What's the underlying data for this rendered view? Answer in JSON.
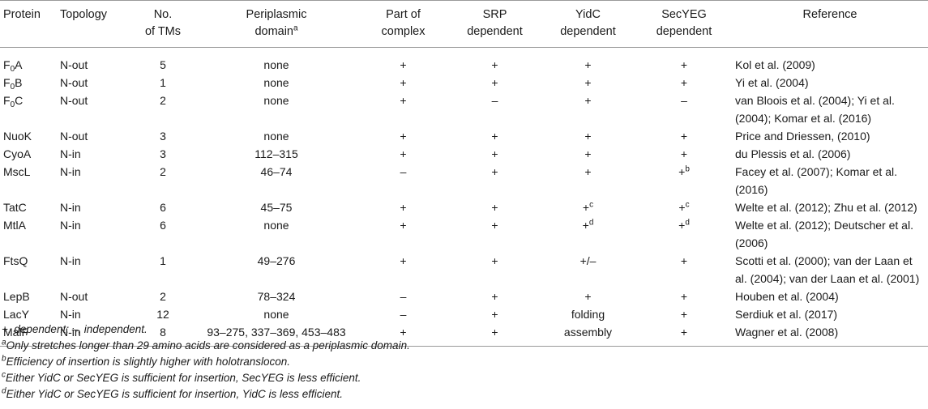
{
  "headers": {
    "protein": "Protein",
    "topology": "Topology",
    "tms_1": "No.",
    "tms_2": "of TMs",
    "peri_1": "Periplasmic",
    "peri_2": "domain",
    "peri_sup": "a",
    "complex_1": "Part of",
    "complex_2": "complex",
    "srp_1": "SRP",
    "srp_2": "dependent",
    "yidc_1": "YidC",
    "yidc_2": "dependent",
    "secyeg_1": "SecYEG",
    "secyeg_2": "dependent",
    "reference": "Reference"
  },
  "rows": [
    {
      "p_main": "F",
      "p_sub": "0",
      "p_tail": "A",
      "topology": "N-out",
      "tms": "5",
      "peri": "none",
      "complex": "+",
      "srp": "+",
      "yidc": "+",
      "yidc_sup": "",
      "secyeg": "+",
      "secyeg_sup": "",
      "reference": "Kol et al. (2009)"
    },
    {
      "p_main": "F",
      "p_sub": "0",
      "p_tail": "B",
      "topology": "N-out",
      "tms": "1",
      "peri": "none",
      "complex": "+",
      "srp": "+",
      "yidc": "+",
      "yidc_sup": "",
      "secyeg": "+",
      "secyeg_sup": "",
      "reference": "Yi et al. (2004)"
    },
    {
      "p_main": "F",
      "p_sub": "0",
      "p_tail": "C",
      "topology": "N-out",
      "tms": "2",
      "peri": "none",
      "complex": "+",
      "srp": "–",
      "yidc": "+",
      "yidc_sup": "",
      "secyeg": "–",
      "secyeg_sup": "",
      "reference": "van Bloois et al. (2004); Yi et al. (2004); Komar et al. (2016)"
    },
    {
      "p_main": "NuoK",
      "p_sub": "",
      "p_tail": "",
      "topology": "N-out",
      "tms": "3",
      "peri": "none",
      "complex": "+",
      "srp": "+",
      "yidc": "+",
      "yidc_sup": "",
      "secyeg": "+",
      "secyeg_sup": "",
      "reference": "Price and Driessen, (2010)"
    },
    {
      "p_main": "CyoA",
      "p_sub": "",
      "p_tail": "",
      "topology": "N-in",
      "tms": "3",
      "peri": "112–315",
      "complex": "+",
      "srp": "+",
      "yidc": "+",
      "yidc_sup": "",
      "secyeg": "+",
      "secyeg_sup": "",
      "reference": "du Plessis et al. (2006)"
    },
    {
      "p_main": "MscL",
      "p_sub": "",
      "p_tail": "",
      "topology": "N-in",
      "tms": "2",
      "peri": "46–74",
      "complex": "–",
      "srp": "+",
      "yidc": "+",
      "yidc_sup": "",
      "secyeg": "+",
      "secyeg_sup": "b",
      "reference": "Facey et al. (2007); Komar et al. (2016)"
    },
    {
      "p_main": "TatC",
      "p_sub": "",
      "p_tail": "",
      "topology": "N-in",
      "tms": "6",
      "peri": "45–75",
      "complex": "+",
      "srp": "+",
      "yidc": "+",
      "yidc_sup": "c",
      "secyeg": "+",
      "secyeg_sup": "c",
      "reference": "Welte et al. (2012); Zhu et al. (2012)"
    },
    {
      "p_main": "MtlA",
      "p_sub": "",
      "p_tail": "",
      "topology": "N-in",
      "tms": "6",
      "peri": "none",
      "complex": "+",
      "srp": "+",
      "yidc": "+",
      "yidc_sup": "d",
      "secyeg": "+",
      "secyeg_sup": "d",
      "reference": "Welte et al. (2012); Deutscher et al. (2006)"
    },
    {
      "p_main": "FtsQ",
      "p_sub": "",
      "p_tail": "",
      "topology": "N-in",
      "tms": "1",
      "peri": "49–276",
      "complex": "+",
      "srp": "+",
      "yidc": "+/–",
      "yidc_sup": "",
      "secyeg": "+",
      "secyeg_sup": "",
      "reference": "Scotti et al. (2000); van der Laan et al. (2004); van der Laan et al. (2001)"
    },
    {
      "p_main": "LepB",
      "p_sub": "",
      "p_tail": "",
      "topology": "N-out",
      "tms": "2",
      "peri": "78–324",
      "complex": "–",
      "srp": "+",
      "yidc": "+",
      "yidc_sup": "",
      "secyeg": "+",
      "secyeg_sup": "",
      "reference": "Houben et al. (2004)"
    },
    {
      "p_main": "LacY",
      "p_sub": "",
      "p_tail": "",
      "topology": "N-in",
      "tms": "12",
      "peri": "none",
      "complex": "–",
      "srp": "+",
      "yidc": "folding",
      "yidc_sup": "",
      "secyeg": "+",
      "secyeg_sup": "",
      "reference": "Serdiuk et al. (2017)"
    },
    {
      "p_main": "MalF",
      "p_sub": "",
      "p_tail": "",
      "topology": "N-in",
      "tms": "8",
      "peri": "93–275, 337–369, 453–483",
      "complex": "+",
      "srp": "+",
      "yidc": "assembly",
      "yidc_sup": "",
      "secyeg": "+",
      "secyeg_sup": "",
      "reference": "Wagner et al. (2008)"
    }
  ],
  "notes": {
    "legend": "+, dependent; –, independent.",
    "a_sup": "a",
    "a_text": "Only stretches longer than 29 amino acids are considered as a periplasmic domain.",
    "b_sup": "b",
    "b_text": "Efficiency of insertion is slightly higher with holotranslocon.",
    "c_sup": "c",
    "c_text": "Either YidC or SecYEG is sufficient for insertion, SecYEG is less efficient.",
    "d_sup": "d",
    "d_text": "Either YidC or SecYEG is sufficient for insertion, YidC is less efficient."
  }
}
